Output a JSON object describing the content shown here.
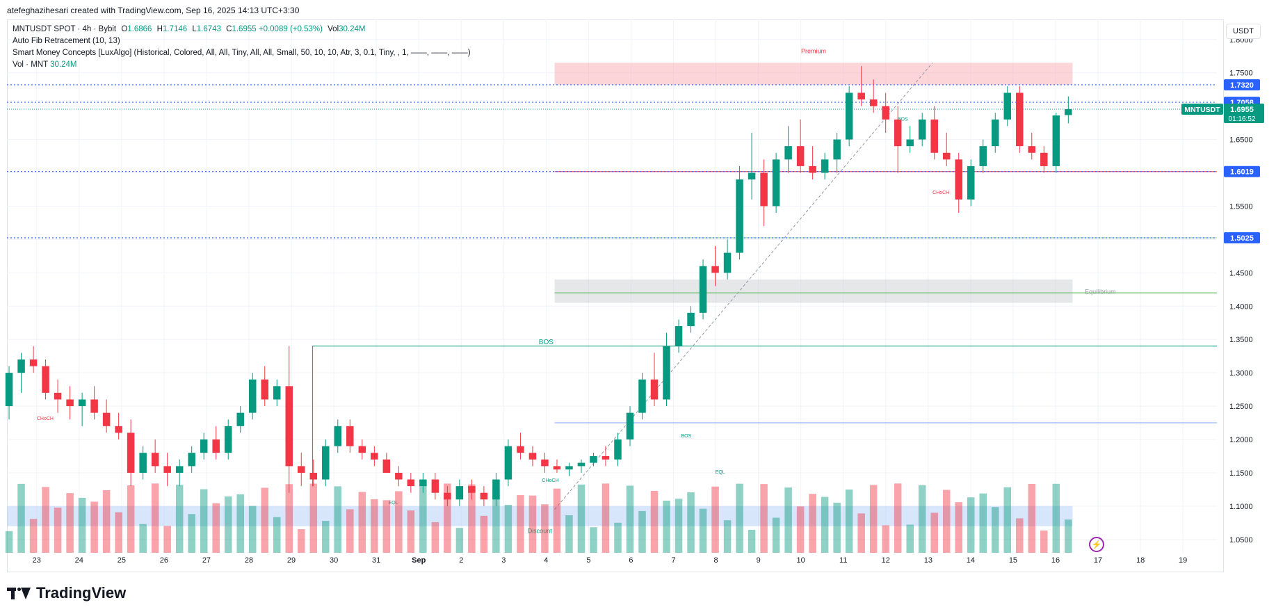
{
  "header": {
    "author_line": "atefeghazihesari created with TradingView.com, Sep 16, 2025 14:13 UTC+3:30"
  },
  "legend": {
    "symbol": "MNTUSDT SPOT · 4h · Bybit",
    "o_label": "O",
    "o": "1.6866",
    "h_label": "H",
    "h": "1.7146",
    "l_label": "L",
    "l": "1.6743",
    "c_label": "C",
    "c": "1.6955",
    "change": "+0.0089 (+0.53%)",
    "vol_label": "Vol",
    "vol": "30.24M",
    "fib": "Auto Fib Retracement (10, 13)",
    "smc": "Smart Money Concepts [LuxAlgo] (Historical, Colored, All, All, Tiny, All, All, Small, 50, 10, 10, Atr, 3, 0.1, Tiny, , 1, ——, ——, ——)",
    "vol_row_label": "Vol · MNT",
    "vol_row_value": "30.24M"
  },
  "currency": "USDT",
  "footer": {
    "logo_text": "TradingView",
    "bolt": "⚡"
  },
  "colors": {
    "up": "#089981",
    "down": "#f23645",
    "blue": "#2962ff",
    "grid": "#f0f3fa"
  },
  "chart_data": {
    "type": "candlestick",
    "title": "MNTUSDT SPOT · 4h · Bybit",
    "yticks": [
      1.05,
      1.1,
      1.15,
      1.2,
      1.25,
      1.3,
      1.35,
      1.4,
      1.45,
      1.5,
      1.55,
      1.6,
      1.65,
      1.7,
      1.75,
      1.8
    ],
    "ytick_labels": [
      "1.0500",
      "1.1000",
      "1.1500",
      "1.2000",
      "1.2500",
      "1.3000",
      "1.3500",
      "1.4000",
      "1.4500",
      "1.5000",
      "1.5500",
      "1.6000",
      "1.6500",
      "1.7000",
      "1.7500",
      "1.8000"
    ],
    "ylim": [
      1.03,
      1.83
    ],
    "xlim": [
      22.3,
      19.8
    ],
    "xticks": [
      {
        "label": "23",
        "t": 23
      },
      {
        "label": "24",
        "t": 24
      },
      {
        "label": "25",
        "t": 25
      },
      {
        "label": "26",
        "t": 26
      },
      {
        "label": "27",
        "t": 27
      },
      {
        "label": "28",
        "t": 28
      },
      {
        "label": "29",
        "t": 29
      },
      {
        "label": "30",
        "t": 30
      },
      {
        "label": "31",
        "t": 31
      },
      {
        "label": "Sep",
        "t": 32
      },
      {
        "label": "2",
        "t": 33
      },
      {
        "label": "3",
        "t": 34
      },
      {
        "label": "4",
        "t": 35
      },
      {
        "label": "5",
        "t": 36
      },
      {
        "label": "6",
        "t": 37
      },
      {
        "label": "7",
        "t": 38
      },
      {
        "label": "8",
        "t": 39
      },
      {
        "label": "9",
        "t": 40
      },
      {
        "label": "10",
        "t": 41
      },
      {
        "label": "11",
        "t": 42
      },
      {
        "label": "12",
        "t": 43
      },
      {
        "label": "13",
        "t": 44
      },
      {
        "label": "14",
        "t": 45
      },
      {
        "label": "15",
        "t": 46
      },
      {
        "label": "16",
        "t": 47
      },
      {
        "label": "17",
        "t": 48
      },
      {
        "label": "18",
        "t": 49
      },
      {
        "label": "19",
        "t": 50
      }
    ],
    "t_start": 22.3,
    "t_end": 50.8,
    "price_labels": [
      {
        "value": 1.732,
        "text": "1.7320",
        "color": "#2962ff"
      },
      {
        "value": 1.7058,
        "text": "1.7058",
        "color": "#2962ff"
      },
      {
        "value": 1.6019,
        "text": "1.6019",
        "color": "#2962ff"
      },
      {
        "value": 1.5025,
        "text": "1.5025",
        "color": "#2962ff"
      }
    ],
    "current": {
      "symbol": "MNTUSDT",
      "price": "1.6955",
      "value": 1.6955,
      "countdown": "01:16:52"
    },
    "zones": [
      {
        "name": "premium",
        "label": "Premium",
        "t0": 35.2,
        "t1": 47.4,
        "y0": 1.732,
        "y1": 1.765,
        "color": "#f7a1a8"
      },
      {
        "name": "equilibrium",
        "label": "Equilibrium",
        "t0": 35.2,
        "t1": 47.4,
        "y0": 1.405,
        "y1": 1.44,
        "color": "#c8c9cc"
      },
      {
        "name": "discount",
        "label": "Discount",
        "t0": 22.3,
        "t1": 47.4,
        "y0": 1.07,
        "y1": 1.1,
        "color": "#a6c8f5"
      }
    ],
    "structure_labels": [
      {
        "text": "BOS",
        "t": 35.0,
        "y": 1.34,
        "color": "#089981"
      },
      {
        "text": "BOS",
        "t": 43.4,
        "y": 1.675,
        "color": "#089981"
      },
      {
        "text": "BOS",
        "t": 38.3,
        "y": 1.2,
        "color": "#089981"
      },
      {
        "text": "CHoCH",
        "t": 23.2,
        "y": 1.226,
        "color": "#f23645"
      },
      {
        "text": "CHoCH",
        "t": 44.3,
        "y": 1.565,
        "color": "#f23645"
      },
      {
        "text": "CHoCH",
        "t": 35.1,
        "y": 1.133,
        "color": "#089981"
      },
      {
        "text": "EQL",
        "t": 31.4,
        "y": 1.1,
        "color": "#089981"
      },
      {
        "text": "EQL",
        "t": 39.1,
        "y": 1.146,
        "color": "#089981"
      }
    ],
    "candles": [
      {
        "o": 1.25,
        "h": 1.31,
        "l": 1.23,
        "c": 1.3
      },
      {
        "o": 1.3,
        "h": 1.33,
        "l": 1.27,
        "c": 1.32
      },
      {
        "o": 1.32,
        "h": 1.34,
        "l": 1.3,
        "c": 1.31
      },
      {
        "o": 1.31,
        "h": 1.32,
        "l": 1.26,
        "c": 1.27
      },
      {
        "o": 1.27,
        "h": 1.29,
        "l": 1.24,
        "c": 1.26
      },
      {
        "o": 1.26,
        "h": 1.28,
        "l": 1.23,
        "c": 1.25
      },
      {
        "o": 1.25,
        "h": 1.27,
        "l": 1.22,
        "c": 1.26
      },
      {
        "o": 1.26,
        "h": 1.28,
        "l": 1.23,
        "c": 1.24
      },
      {
        "o": 1.24,
        "h": 1.26,
        "l": 1.21,
        "c": 1.22
      },
      {
        "o": 1.22,
        "h": 1.24,
        "l": 1.2,
        "c": 1.21
      },
      {
        "o": 1.21,
        "h": 1.23,
        "l": 1.13,
        "c": 1.15
      },
      {
        "o": 1.15,
        "h": 1.19,
        "l": 1.14,
        "c": 1.18
      },
      {
        "o": 1.18,
        "h": 1.2,
        "l": 1.15,
        "c": 1.16
      },
      {
        "o": 1.16,
        "h": 1.18,
        "l": 1.13,
        "c": 1.15
      },
      {
        "o": 1.15,
        "h": 1.17,
        "l": 1.13,
        "c": 1.16
      },
      {
        "o": 1.16,
        "h": 1.19,
        "l": 1.15,
        "c": 1.18
      },
      {
        "o": 1.18,
        "h": 1.21,
        "l": 1.17,
        "c": 1.2
      },
      {
        "o": 1.2,
        "h": 1.22,
        "l": 1.17,
        "c": 1.18
      },
      {
        "o": 1.18,
        "h": 1.23,
        "l": 1.17,
        "c": 1.22
      },
      {
        "o": 1.22,
        "h": 1.25,
        "l": 1.21,
        "c": 1.24
      },
      {
        "o": 1.24,
        "h": 1.3,
        "l": 1.23,
        "c": 1.29
      },
      {
        "o": 1.29,
        "h": 1.31,
        "l": 1.25,
        "c": 1.26
      },
      {
        "o": 1.26,
        "h": 1.29,
        "l": 1.25,
        "c": 1.28
      },
      {
        "o": 1.28,
        "h": 1.34,
        "l": 1.12,
        "c": 1.16
      },
      {
        "o": 1.16,
        "h": 1.18,
        "l": 1.13,
        "c": 1.15
      },
      {
        "o": 1.15,
        "h": 1.17,
        "l": 1.13,
        "c": 1.14
      },
      {
        "o": 1.14,
        "h": 1.2,
        "l": 1.13,
        "c": 1.19
      },
      {
        "o": 1.19,
        "h": 1.23,
        "l": 1.18,
        "c": 1.22
      },
      {
        "o": 1.22,
        "h": 1.23,
        "l": 1.18,
        "c": 1.19
      },
      {
        "o": 1.19,
        "h": 1.2,
        "l": 1.17,
        "c": 1.18
      },
      {
        "o": 1.18,
        "h": 1.19,
        "l": 1.16,
        "c": 1.17
      },
      {
        "o": 1.17,
        "h": 1.18,
        "l": 1.15,
        "c": 1.15
      },
      {
        "o": 1.15,
        "h": 1.16,
        "l": 1.13,
        "c": 1.14
      },
      {
        "o": 1.14,
        "h": 1.15,
        "l": 1.12,
        "c": 1.13
      },
      {
        "o": 1.13,
        "h": 1.15,
        "l": 1.12,
        "c": 1.14
      },
      {
        "o": 1.14,
        "h": 1.15,
        "l": 1.11,
        "c": 1.12
      },
      {
        "o": 1.12,
        "h": 1.13,
        "l": 1.1,
        "c": 1.11
      },
      {
        "o": 1.11,
        "h": 1.14,
        "l": 1.1,
        "c": 1.13
      },
      {
        "o": 1.13,
        "h": 1.14,
        "l": 1.11,
        "c": 1.12
      },
      {
        "o": 1.12,
        "h": 1.13,
        "l": 1.1,
        "c": 1.11
      },
      {
        "o": 1.11,
        "h": 1.15,
        "l": 1.1,
        "c": 1.14
      },
      {
        "o": 1.14,
        "h": 1.2,
        "l": 1.13,
        "c": 1.19
      },
      {
        "o": 1.19,
        "h": 1.21,
        "l": 1.17,
        "c": 1.18
      },
      {
        "o": 1.18,
        "h": 1.19,
        "l": 1.16,
        "c": 1.17
      },
      {
        "o": 1.17,
        "h": 1.18,
        "l": 1.15,
        "c": 1.16
      },
      {
        "o": 1.16,
        "h": 1.17,
        "l": 1.15,
        "c": 1.155
      },
      {
        "o": 1.155,
        "h": 1.165,
        "l": 1.145,
        "c": 1.16
      },
      {
        "o": 1.16,
        "h": 1.17,
        "l": 1.15,
        "c": 1.165
      },
      {
        "o": 1.165,
        "h": 1.18,
        "l": 1.16,
        "c": 1.175
      },
      {
        "o": 1.175,
        "h": 1.19,
        "l": 1.16,
        "c": 1.17
      },
      {
        "o": 1.17,
        "h": 1.21,
        "l": 1.16,
        "c": 1.2
      },
      {
        "o": 1.2,
        "h": 1.25,
        "l": 1.19,
        "c": 1.24
      },
      {
        "o": 1.24,
        "h": 1.3,
        "l": 1.23,
        "c": 1.29
      },
      {
        "o": 1.29,
        "h": 1.33,
        "l": 1.25,
        "c": 1.26
      },
      {
        "o": 1.26,
        "h": 1.36,
        "l": 1.25,
        "c": 1.34
      },
      {
        "o": 1.34,
        "h": 1.38,
        "l": 1.33,
        "c": 1.37
      },
      {
        "o": 1.37,
        "h": 1.4,
        "l": 1.36,
        "c": 1.39
      },
      {
        "o": 1.39,
        "h": 1.47,
        "l": 1.38,
        "c": 1.46
      },
      {
        "o": 1.46,
        "h": 1.49,
        "l": 1.43,
        "c": 1.45
      },
      {
        "o": 1.45,
        "h": 1.5,
        "l": 1.44,
        "c": 1.48
      },
      {
        "o": 1.48,
        "h": 1.61,
        "l": 1.47,
        "c": 1.59
      },
      {
        "o": 1.59,
        "h": 1.66,
        "l": 1.56,
        "c": 1.6
      },
      {
        "o": 1.6,
        "h": 1.62,
        "l": 1.52,
        "c": 1.55
      },
      {
        "o": 1.55,
        "h": 1.63,
        "l": 1.54,
        "c": 1.62
      },
      {
        "o": 1.62,
        "h": 1.67,
        "l": 1.6,
        "c": 1.64
      },
      {
        "o": 1.64,
        "h": 1.68,
        "l": 1.6,
        "c": 1.61
      },
      {
        "o": 1.61,
        "h": 1.64,
        "l": 1.59,
        "c": 1.6
      },
      {
        "o": 1.6,
        "h": 1.63,
        "l": 1.59,
        "c": 1.62
      },
      {
        "o": 1.62,
        "h": 1.66,
        "l": 1.6,
        "c": 1.65
      },
      {
        "o": 1.65,
        "h": 1.73,
        "l": 1.64,
        "c": 1.72
      },
      {
        "o": 1.72,
        "h": 1.76,
        "l": 1.7,
        "c": 1.71
      },
      {
        "o": 1.71,
        "h": 1.74,
        "l": 1.69,
        "c": 1.7
      },
      {
        "o": 1.7,
        "h": 1.72,
        "l": 1.66,
        "c": 1.68
      },
      {
        "o": 1.68,
        "h": 1.7,
        "l": 1.6,
        "c": 1.64
      },
      {
        "o": 1.64,
        "h": 1.67,
        "l": 1.63,
        "c": 1.65
      },
      {
        "o": 1.65,
        "h": 1.69,
        "l": 1.64,
        "c": 1.68
      },
      {
        "o": 1.68,
        "h": 1.7,
        "l": 1.62,
        "c": 1.63
      },
      {
        "o": 1.63,
        "h": 1.66,
        "l": 1.61,
        "c": 1.62
      },
      {
        "o": 1.62,
        "h": 1.63,
        "l": 1.54,
        "c": 1.56
      },
      {
        "o": 1.56,
        "h": 1.62,
        "l": 1.55,
        "c": 1.61
      },
      {
        "o": 1.61,
        "h": 1.65,
        "l": 1.6,
        "c": 1.64
      },
      {
        "o": 1.64,
        "h": 1.69,
        "l": 1.63,
        "c": 1.68
      },
      {
        "o": 1.68,
        "h": 1.73,
        "l": 1.67,
        "c": 1.72
      },
      {
        "o": 1.72,
        "h": 1.73,
        "l": 1.63,
        "c": 1.64
      },
      {
        "o": 1.64,
        "h": 1.66,
        "l": 1.62,
        "c": 1.63
      },
      {
        "o": 1.63,
        "h": 1.64,
        "l": 1.6,
        "c": 1.61
      },
      {
        "o": 1.61,
        "h": 1.69,
        "l": 1.6,
        "c": 1.686
      },
      {
        "o": 1.6866,
        "h": 1.7146,
        "l": 1.6743,
        "c": 1.6955
      }
    ],
    "volume_axis_max": 100
  }
}
